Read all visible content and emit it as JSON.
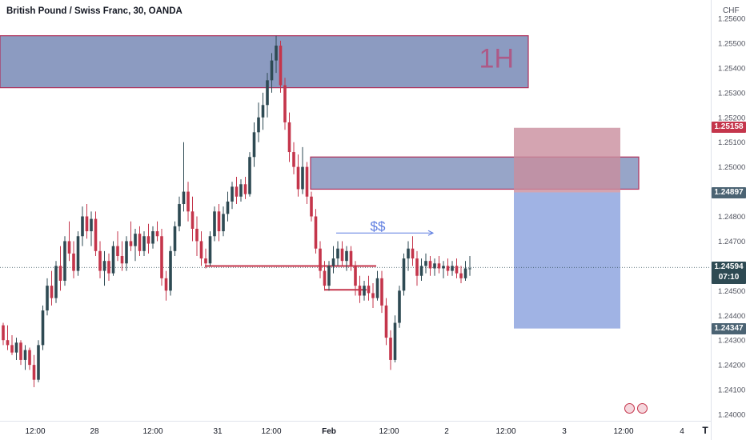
{
  "header": {
    "title": "British Pound / Swiss Franc, 30, OANDA",
    "currency": "CHF"
  },
  "badges": {
    "upper": "1.25158",
    "middle": "1.24897",
    "lower": "1.24347",
    "current_price": "1.24594",
    "countdown": "07:10"
  },
  "annotations": {
    "zone_label": "1H",
    "liquidity_label": "$$"
  },
  "logo": "T",
  "colors": {
    "up": "#2e4a53",
    "down": "#c4354b",
    "zone_fill": "#6b7fb0",
    "zone_border": "#b0305a",
    "stop_fill": "#c98d9e",
    "target_fill": "#8fa6df",
    "level_line": "#c4354b",
    "current_line": "#2e4a53"
  },
  "chart_data": {
    "type": "candlestick",
    "title": "British Pound / Swiss Franc, 30, OANDA",
    "currency": "CHF",
    "y_axis": {
      "range": [
        1.2395,
        1.2561
      ],
      "ticks": [
        "1.24000",
        "1.24100",
        "1.24200",
        "1.24300",
        "1.24400",
        "1.24500",
        "1.24600",
        "1.24700",
        "1.24800",
        "1.24900",
        "1.25000",
        "1.25100",
        "1.25200",
        "1.25300",
        "1.25400",
        "1.25500",
        "1.25600"
      ]
    },
    "x_axis": {
      "ticks": [
        "12:00",
        "28",
        "12:00",
        "31",
        "12:00",
        "Feb",
        "12:00",
        "2",
        "12:00",
        "3",
        "12:00",
        "4"
      ]
    },
    "candles": [
      [
        1.2436,
        1.2437,
        1.2428,
        1.243
      ],
      [
        1.243,
        1.2436,
        1.2426,
        1.2428
      ],
      [
        1.2428,
        1.2432,
        1.2424,
        1.2425
      ],
      [
        1.2425,
        1.2431,
        1.2422,
        1.2429
      ],
      [
        1.2429,
        1.243,
        1.242,
        1.2422
      ],
      [
        1.2422,
        1.2428,
        1.2418,
        1.2426
      ],
      [
        1.2426,
        1.2427,
        1.2418,
        1.242
      ],
      [
        1.242,
        1.2424,
        1.2411,
        1.2414
      ],
      [
        1.2414,
        1.243,
        1.2413,
        1.2428
      ],
      [
        1.2428,
        1.2444,
        1.2426,
        1.2442
      ],
      [
        1.2442,
        1.2455,
        1.244,
        1.2452
      ],
      [
        1.2452,
        1.2458,
        1.2444,
        1.2447
      ],
      [
        1.2447,
        1.2462,
        1.2445,
        1.246
      ],
      [
        1.246,
        1.2468,
        1.245,
        1.2454
      ],
      [
        1.2454,
        1.2472,
        1.2452,
        1.247
      ],
      [
        1.247,
        1.2478,
        1.2462,
        1.2465
      ],
      [
        1.2465,
        1.247,
        1.2455,
        1.2458
      ],
      [
        1.2458,
        1.2474,
        1.2456,
        1.2472
      ],
      [
        1.2472,
        1.2484,
        1.2468,
        1.248
      ],
      [
        1.248,
        1.2485,
        1.2471,
        1.2474
      ],
      [
        1.2474,
        1.2482,
        1.2468,
        1.2479
      ],
      [
        1.2479,
        1.2482,
        1.2464,
        1.2466
      ],
      [
        1.2466,
        1.247,
        1.2455,
        1.2458
      ],
      [
        1.2458,
        1.2466,
        1.2452,
        1.2462
      ],
      [
        1.2462,
        1.2465,
        1.2454,
        1.2457
      ],
      [
        1.2457,
        1.247,
        1.2456,
        1.2468
      ],
      [
        1.2468,
        1.2474,
        1.2462,
        1.2464
      ],
      [
        1.2464,
        1.247,
        1.2458,
        1.2461
      ],
      [
        1.2461,
        1.2472,
        1.2458,
        1.247
      ],
      [
        1.247,
        1.2478,
        1.2466,
        1.2468
      ],
      [
        1.2468,
        1.2475,
        1.2462,
        1.2473
      ],
      [
        1.2473,
        1.2476,
        1.2464,
        1.2466
      ],
      [
        1.2466,
        1.2474,
        1.2464,
        1.2472
      ],
      [
        1.2472,
        1.2477,
        1.2465,
        1.2469
      ],
      [
        1.2469,
        1.2476,
        1.2467,
        1.2474
      ],
      [
        1.2474,
        1.2478,
        1.247,
        1.2472
      ],
      [
        1.2472,
        1.2475,
        1.2452,
        1.2455
      ],
      [
        1.2455,
        1.2458,
        1.2446,
        1.245
      ],
      [
        1.245,
        1.2468,
        1.2448,
        1.2466
      ],
      [
        1.2466,
        1.2478,
        1.2464,
        1.2476
      ],
      [
        1.2476,
        1.2488,
        1.2474,
        1.2485
      ],
      [
        1.2485,
        1.251,
        1.2482,
        1.249
      ],
      [
        1.249,
        1.2494,
        1.2478,
        1.2482
      ],
      [
        1.2482,
        1.2488,
        1.247,
        1.2475
      ],
      [
        1.2475,
        1.248,
        1.2464,
        1.247
      ],
      [
        1.247,
        1.2474,
        1.246,
        1.2463
      ],
      [
        1.2463,
        1.2467,
        1.2459,
        1.2461
      ],
      [
        1.2461,
        1.2474,
        1.246,
        1.2472
      ],
      [
        1.2472,
        1.2484,
        1.247,
        1.2482
      ],
      [
        1.2482,
        1.2485,
        1.247,
        1.2474
      ],
      [
        1.2474,
        1.2484,
        1.2472,
        1.2481
      ],
      [
        1.2481,
        1.249,
        1.2478,
        1.2486
      ],
      [
        1.2486,
        1.2494,
        1.2483,
        1.2492
      ],
      [
        1.2492,
        1.2496,
        1.2485,
        1.2488
      ],
      [
        1.2488,
        1.2495,
        1.2486,
        1.2493
      ],
      [
        1.2493,
        1.2496,
        1.2487,
        1.2489
      ],
      [
        1.2489,
        1.2506,
        1.2488,
        1.2504
      ],
      [
        1.2504,
        1.2518,
        1.25,
        1.2514
      ],
      [
        1.2514,
        1.2526,
        1.251,
        1.252
      ],
      [
        1.252,
        1.253,
        1.2515,
        1.2525
      ],
      [
        1.2525,
        1.2538,
        1.252,
        1.2535
      ],
      [
        1.2535,
        1.2546,
        1.253,
        1.2543
      ],
      [
        1.2543,
        1.2553,
        1.2538,
        1.2549
      ],
      [
        1.2549,
        1.2551,
        1.253,
        1.2533
      ],
      [
        1.2533,
        1.2536,
        1.2515,
        1.2518
      ],
      [
        1.2518,
        1.2522,
        1.2502,
        1.2506
      ],
      [
        1.2506,
        1.251,
        1.2497,
        1.25
      ],
      [
        1.25,
        1.2505,
        1.2488,
        1.2491
      ],
      [
        1.2491,
        1.2508,
        1.2489,
        1.25
      ],
      [
        1.25,
        1.2502,
        1.2485,
        1.2488
      ],
      [
        1.2488,
        1.249,
        1.2478,
        1.248
      ],
      [
        1.248,
        1.2483,
        1.2465,
        1.2467
      ],
      [
        1.2467,
        1.247,
        1.2455,
        1.2458
      ],
      [
        1.2458,
        1.2462,
        1.245,
        1.2452
      ],
      [
        1.2452,
        1.2462,
        1.245,
        1.246
      ],
      [
        1.246,
        1.2468,
        1.2457,
        1.2463
      ],
      [
        1.2463,
        1.247,
        1.246,
        1.2467
      ],
      [
        1.2467,
        1.247,
        1.246,
        1.2462
      ],
      [
        1.2462,
        1.2468,
        1.2458,
        1.2466
      ],
      [
        1.2466,
        1.2468,
        1.2458,
        1.246
      ],
      [
        1.246,
        1.2462,
        1.2448,
        1.2452
      ],
      [
        1.2452,
        1.2456,
        1.2445,
        1.2448
      ],
      [
        1.2448,
        1.2454,
        1.2446,
        1.2452
      ],
      [
        1.2452,
        1.2456,
        1.2446,
        1.2449
      ],
      [
        1.2449,
        1.2453,
        1.2443,
        1.2447
      ],
      [
        1.2447,
        1.2458,
        1.2446,
        1.2455
      ],
      [
        1.2455,
        1.2458,
        1.2441,
        1.2444
      ],
      [
        1.2444,
        1.2447,
        1.2428,
        1.2431
      ],
      [
        1.2431,
        1.2434,
        1.2418,
        1.2422
      ],
      [
        1.2422,
        1.244,
        1.2421,
        1.2437
      ],
      [
        1.2437,
        1.2452,
        1.2435,
        1.245
      ],
      [
        1.245,
        1.2465,
        1.2448,
        1.2463
      ],
      [
        1.2463,
        1.247,
        1.2458,
        1.2467
      ],
      [
        1.2467,
        1.2472,
        1.246,
        1.2463
      ],
      [
        1.2463,
        1.2466,
        1.2452,
        1.2456
      ],
      [
        1.2456,
        1.2463,
        1.2454,
        1.246
      ],
      [
        1.246,
        1.2465,
        1.2457,
        1.2462
      ],
      [
        1.2462,
        1.2464,
        1.2456,
        1.2459
      ],
      [
        1.2459,
        1.2463,
        1.2456,
        1.2461
      ],
      [
        1.2461,
        1.2464,
        1.2457,
        1.2459
      ],
      [
        1.2459,
        1.2462,
        1.2455,
        1.246
      ],
      [
        1.246,
        1.2463,
        1.2456,
        1.2458
      ],
      [
        1.2458,
        1.2462,
        1.2456,
        1.246
      ],
      [
        1.246,
        1.2463,
        1.2455,
        1.2457
      ],
      [
        1.2457,
        1.246,
        1.2453,
        1.2455
      ],
      [
        1.2455,
        1.2462,
        1.2454,
        1.2459
      ],
      [
        1.2459,
        1.2464,
        1.2456,
        1.2459
      ]
    ],
    "zones": [
      {
        "label": "1H",
        "y_top": 1.2553,
        "y_bottom": 1.2532
      },
      {
        "label": "",
        "y_top": 1.2504,
        "y_bottom": 1.2491
      }
    ],
    "position": {
      "entry": 1.24897,
      "stop": 1.25158,
      "target": 1.24347
    },
    "levels": [
      1.2459,
      1.2451
    ],
    "liquidity_line": 1.2472,
    "current_price": 1.24594,
    "countdown": "07:10"
  }
}
